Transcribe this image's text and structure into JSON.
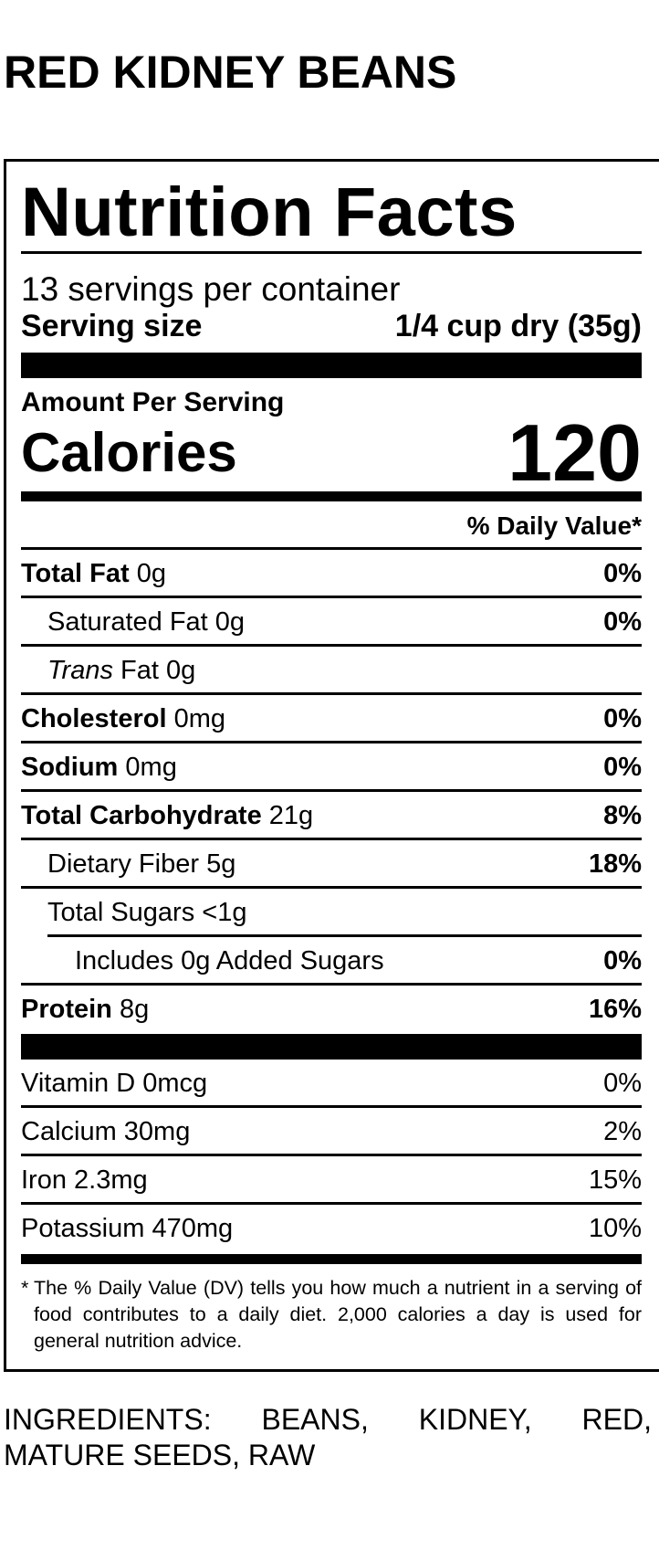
{
  "product_title": "RED KIDNEY BEANS",
  "label": {
    "title": "Nutrition Facts",
    "servings_per_container": "13 servings per container",
    "serving_size_label": "Serving size",
    "serving_size_value": "1/4 cup dry (35g)",
    "amount_per_serving": "Amount Per Serving",
    "calories_label": "Calories",
    "calories_value": "120",
    "daily_value_header": "% Daily Value*",
    "nutrients": [
      {
        "name": "Total Fat",
        "amount": "0g",
        "dv": "0%"
      },
      {
        "name": "Saturated Fat",
        "amount": "0g",
        "dv": "0%"
      },
      {
        "name": "Trans",
        "name_rest": "Fat",
        "amount": "0g",
        "dv": ""
      },
      {
        "name": "Cholesterol",
        "amount": "0mg",
        "dv": "0%"
      },
      {
        "name": "Sodium",
        "amount": "0mg",
        "dv": "0%"
      },
      {
        "name": "Total Carbohydrate",
        "amount": "21g",
        "dv": "8%"
      },
      {
        "name": "Dietary Fiber",
        "amount": "5g",
        "dv": "18%"
      },
      {
        "name": "Total Sugars",
        "amount": "<1g",
        "dv": ""
      },
      {
        "name": "Includes 0g Added Sugars",
        "amount": "",
        "dv": "0%"
      },
      {
        "name": "Protein",
        "amount": "8g",
        "dv": "16%"
      }
    ],
    "vitamins": [
      {
        "name": "Vitamin D 0mcg",
        "dv": "0%"
      },
      {
        "name": "Calcium 30mg",
        "dv": "2%"
      },
      {
        "name": "Iron 2.3mg",
        "dv": "15%"
      },
      {
        "name": "Potassium 470mg",
        "dv": "10%"
      }
    ],
    "footnote_star": "*",
    "footnote": "The % Daily Value (DV) tells you how much a nutrient in a serving of food contributes to a daily diet. 2,000 calories a day is used for general nutrition advice."
  },
  "ingredients": "INGREDIENTS: BEANS, KIDNEY, RED, MATURE SEEDS, RAW"
}
